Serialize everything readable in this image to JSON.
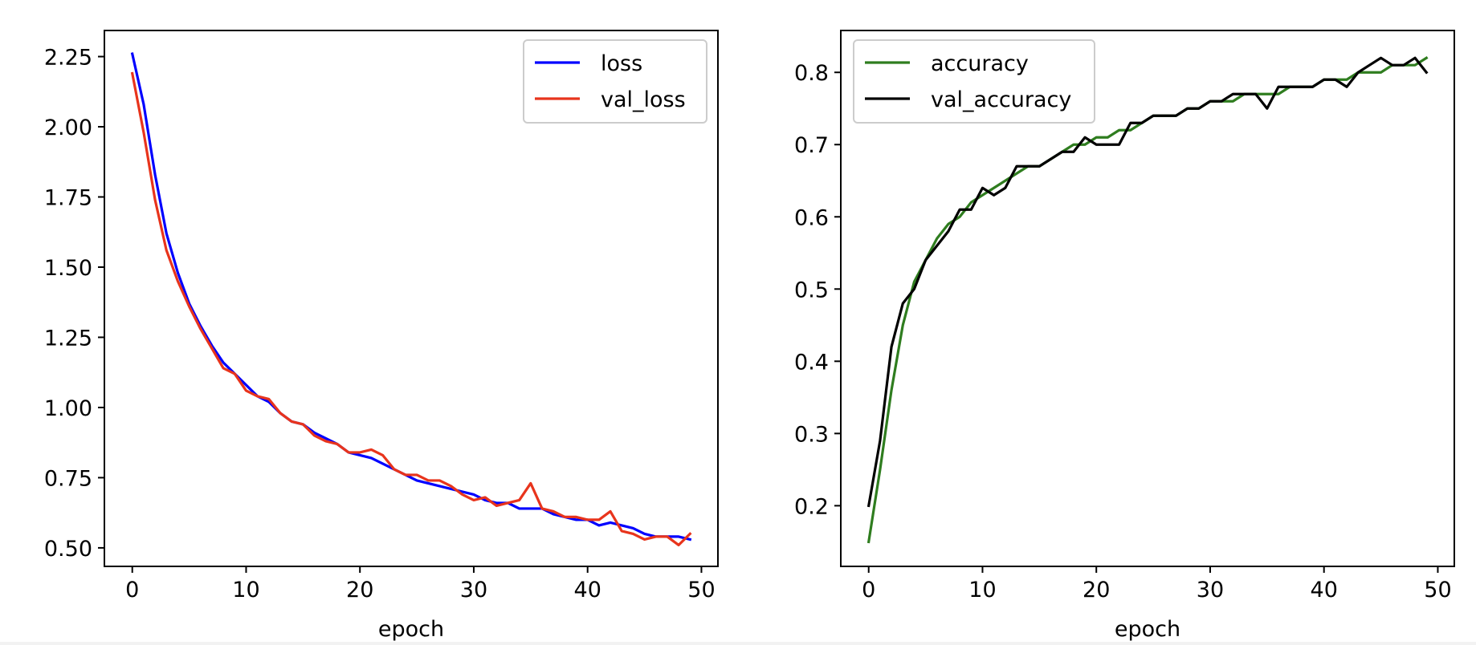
{
  "chart_data": [
    {
      "type": "line",
      "xlabel": "epoch",
      "ylabel": "",
      "xlim": [
        -2.45,
        51.45
      ],
      "ylim": [
        0.434,
        2.343
      ],
      "xticks": [
        0,
        10,
        20,
        30,
        40,
        50
      ],
      "xtick_labels": [
        "0",
        "10",
        "20",
        "30",
        "40",
        "50"
      ],
      "yticks": [
        0.5,
        0.75,
        1.0,
        1.25,
        1.5,
        1.75,
        2.0,
        2.25
      ],
      "ytick_labels": [
        "0.50",
        "0.75",
        "1.00",
        "1.25",
        "1.50",
        "1.75",
        "2.00",
        "2.25"
      ],
      "grid": false,
      "legend_position": "top-right",
      "x": [
        0,
        1,
        2,
        3,
        4,
        5,
        6,
        7,
        8,
        9,
        10,
        11,
        12,
        13,
        14,
        15,
        16,
        17,
        18,
        19,
        20,
        21,
        22,
        23,
        24,
        25,
        26,
        27,
        28,
        29,
        30,
        31,
        32,
        33,
        34,
        35,
        36,
        37,
        38,
        39,
        40,
        41,
        42,
        43,
        44,
        45,
        46,
        47,
        48,
        49
      ],
      "series": [
        {
          "name": "loss",
          "color": "#0000ff",
          "values": [
            2.26,
            2.08,
            1.83,
            1.62,
            1.48,
            1.37,
            1.29,
            1.22,
            1.16,
            1.12,
            1.08,
            1.04,
            1.02,
            0.98,
            0.95,
            0.94,
            0.91,
            0.89,
            0.87,
            0.84,
            0.83,
            0.82,
            0.8,
            0.78,
            0.76,
            0.74,
            0.73,
            0.72,
            0.71,
            0.7,
            0.69,
            0.67,
            0.66,
            0.66,
            0.64,
            0.64,
            0.64,
            0.62,
            0.61,
            0.6,
            0.6,
            0.58,
            0.59,
            0.58,
            0.57,
            0.55,
            0.54,
            0.54,
            0.54,
            0.53
          ]
        },
        {
          "name": "val_loss",
          "color": "#e8341c",
          "values": [
            2.19,
            1.98,
            1.74,
            1.56,
            1.45,
            1.36,
            1.28,
            1.21,
            1.14,
            1.12,
            1.06,
            1.04,
            1.03,
            0.98,
            0.95,
            0.94,
            0.9,
            0.88,
            0.87,
            0.84,
            0.84,
            0.85,
            0.83,
            0.78,
            0.76,
            0.76,
            0.74,
            0.74,
            0.72,
            0.69,
            0.67,
            0.68,
            0.65,
            0.66,
            0.67,
            0.73,
            0.64,
            0.63,
            0.61,
            0.61,
            0.6,
            0.6,
            0.63,
            0.56,
            0.55,
            0.53,
            0.54,
            0.54,
            0.51,
            0.55
          ]
        }
      ]
    },
    {
      "type": "line",
      "xlabel": "epoch",
      "ylabel": "",
      "xlim": [
        -2.45,
        51.45
      ],
      "ylim": [
        0.116,
        0.858
      ],
      "xticks": [
        0,
        10,
        20,
        30,
        40,
        50
      ],
      "xtick_labels": [
        "0",
        "10",
        "20",
        "30",
        "40",
        "50"
      ],
      "yticks": [
        0.2,
        0.3,
        0.4,
        0.5,
        0.6,
        0.7,
        0.8
      ],
      "ytick_labels": [
        "0.2",
        "0.3",
        "0.4",
        "0.5",
        "0.6",
        "0.7",
        "0.8"
      ],
      "grid": false,
      "legend_position": "top-left",
      "x": [
        0,
        1,
        2,
        3,
        4,
        5,
        6,
        7,
        8,
        9,
        10,
        11,
        12,
        13,
        14,
        15,
        16,
        17,
        18,
        19,
        20,
        21,
        22,
        23,
        24,
        25,
        26,
        27,
        28,
        29,
        30,
        31,
        32,
        33,
        34,
        35,
        36,
        37,
        38,
        39,
        40,
        41,
        42,
        43,
        44,
        45,
        46,
        47,
        48,
        49
      ],
      "series": [
        {
          "name": "accuracy",
          "color": "#2f7d1f",
          "values": [
            0.15,
            0.25,
            0.36,
            0.45,
            0.51,
            0.54,
            0.57,
            0.59,
            0.6,
            0.62,
            0.63,
            0.64,
            0.65,
            0.66,
            0.67,
            0.67,
            0.68,
            0.69,
            0.7,
            0.7,
            0.71,
            0.71,
            0.72,
            0.72,
            0.73,
            0.74,
            0.74,
            0.74,
            0.75,
            0.75,
            0.76,
            0.76,
            0.76,
            0.77,
            0.77,
            0.77,
            0.77,
            0.78,
            0.78,
            0.78,
            0.79,
            0.79,
            0.79,
            0.8,
            0.8,
            0.8,
            0.81,
            0.81,
            0.81,
            0.82
          ]
        },
        {
          "name": "val_accuracy",
          "color": "#000000",
          "values": [
            0.2,
            0.29,
            0.42,
            0.48,
            0.5,
            0.54,
            0.56,
            0.58,
            0.61,
            0.61,
            0.64,
            0.63,
            0.64,
            0.67,
            0.67,
            0.67,
            0.68,
            0.69,
            0.69,
            0.71,
            0.7,
            0.7,
            0.7,
            0.73,
            0.73,
            0.74,
            0.74,
            0.74,
            0.75,
            0.75,
            0.76,
            0.76,
            0.77,
            0.77,
            0.77,
            0.75,
            0.78,
            0.78,
            0.78,
            0.78,
            0.79,
            0.79,
            0.78,
            0.8,
            0.81,
            0.82,
            0.81,
            0.81,
            0.82,
            0.8
          ]
        }
      ]
    }
  ]
}
